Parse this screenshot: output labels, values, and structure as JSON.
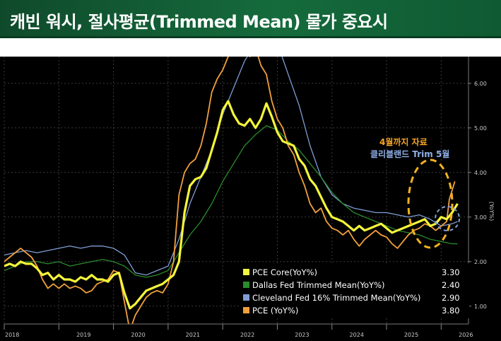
{
  "title": "캐빈 워시, 절사평균(Trimmed Mean) 물가 중요시",
  "annotations": {
    "pce_note": "4월까지 자료",
    "cleveland_note": "클리블랜드 Trim 5월"
  },
  "colors": {
    "pce_core": "#f5f53a",
    "dallas": "#2a8c2a",
    "cleveland": "#7f9ed6",
    "pce": "#f2a03c",
    "title_bg": "#156b3c"
  },
  "chart_data": {
    "type": "line",
    "title": "",
    "xlabel": "",
    "ylabel": "(YoY%)",
    "xlim": [
      2018.0,
      2026.5
    ],
    "ylim": [
      0.6,
      6.6
    ],
    "x_ticks": [
      "2018",
      "2019",
      "2020",
      "2021",
      "2022",
      "2023",
      "2024",
      "2025",
      "2026"
    ],
    "y_ticks": [
      "1.00",
      "2.00",
      "3.00",
      "4.00",
      "5.00",
      "6.00"
    ],
    "legend_position": "bottom-right",
    "series": [
      {
        "name": "PCE Core(YoY%)",
        "last_value": "3.30",
        "color": "#f5f53a",
        "points": [
          [
            2018.0,
            1.9
          ],
          [
            2018.1,
            1.95
          ],
          [
            2018.2,
            1.9
          ],
          [
            2018.3,
            2.0
          ],
          [
            2018.4,
            1.95
          ],
          [
            2018.5,
            1.95
          ],
          [
            2018.6,
            1.85
          ],
          [
            2018.7,
            1.7
          ],
          [
            2018.8,
            1.75
          ],
          [
            2018.9,
            1.6
          ],
          [
            2019.0,
            1.7
          ],
          [
            2019.1,
            1.6
          ],
          [
            2019.2,
            1.6
          ],
          [
            2019.3,
            1.55
          ],
          [
            2019.4,
            1.65
          ],
          [
            2019.5,
            1.6
          ],
          [
            2019.6,
            1.7
          ],
          [
            2019.7,
            1.6
          ],
          [
            2019.8,
            1.6
          ],
          [
            2019.9,
            1.55
          ],
          [
            2020.0,
            1.7
          ],
          [
            2020.1,
            1.75
          ],
          [
            2020.2,
            1.3
          ],
          [
            2020.3,
            0.95
          ],
          [
            2020.4,
            1.05
          ],
          [
            2020.5,
            1.2
          ],
          [
            2020.6,
            1.35
          ],
          [
            2020.7,
            1.4
          ],
          [
            2020.8,
            1.45
          ],
          [
            2020.9,
            1.5
          ],
          [
            2021.0,
            1.6
          ],
          [
            2021.1,
            1.7
          ],
          [
            2021.2,
            2.0
          ],
          [
            2021.3,
            3.1
          ],
          [
            2021.4,
            3.7
          ],
          [
            2021.5,
            3.85
          ],
          [
            2021.6,
            3.9
          ],
          [
            2021.7,
            4.1
          ],
          [
            2021.8,
            4.5
          ],
          [
            2021.9,
            4.9
          ],
          [
            2022.0,
            5.4
          ],
          [
            2022.1,
            5.6
          ],
          [
            2022.2,
            5.3
          ],
          [
            2022.3,
            5.1
          ],
          [
            2022.4,
            5.05
          ],
          [
            2022.5,
            5.2
          ],
          [
            2022.6,
            5.0
          ],
          [
            2022.7,
            5.2
          ],
          [
            2022.8,
            5.55
          ],
          [
            2022.9,
            5.25
          ],
          [
            2023.0,
            4.9
          ],
          [
            2023.1,
            4.7
          ],
          [
            2023.2,
            4.65
          ],
          [
            2023.3,
            4.6
          ],
          [
            2023.4,
            4.3
          ],
          [
            2023.5,
            4.15
          ],
          [
            2023.6,
            3.85
          ],
          [
            2023.7,
            3.7
          ],
          [
            2023.8,
            3.45
          ],
          [
            2023.9,
            3.2
          ],
          [
            2024.0,
            3.0
          ],
          [
            2024.1,
            2.95
          ],
          [
            2024.2,
            2.9
          ],
          [
            2024.3,
            2.8
          ],
          [
            2024.4,
            2.7
          ],
          [
            2024.5,
            2.8
          ],
          [
            2024.6,
            2.7
          ],
          [
            2024.7,
            2.75
          ],
          [
            2024.8,
            2.8
          ],
          [
            2024.9,
            2.85
          ],
          [
            2025.0,
            2.75
          ],
          [
            2025.1,
            2.65
          ],
          [
            2025.2,
            2.7
          ],
          [
            2025.3,
            2.75
          ],
          [
            2025.4,
            2.8
          ],
          [
            2025.5,
            2.85
          ],
          [
            2025.6,
            2.9
          ],
          [
            2025.7,
            2.95
          ],
          [
            2025.8,
            2.8
          ],
          [
            2025.9,
            2.85
          ],
          [
            2026.0,
            3.0
          ],
          [
            2026.1,
            2.95
          ],
          [
            2026.2,
            3.1
          ],
          [
            2026.3,
            3.3
          ]
        ]
      },
      {
        "name": "Dallas Fed Trimmed Mean(YoY%)",
        "last_value": "2.40",
        "color": "#2a8c2a",
        "points": [
          [
            2018.0,
            1.8
          ],
          [
            2018.2,
            1.9
          ],
          [
            2018.4,
            2.0
          ],
          [
            2018.6,
            2.0
          ],
          [
            2018.8,
            1.95
          ],
          [
            2019.0,
            2.0
          ],
          [
            2019.2,
            1.9
          ],
          [
            2019.4,
            1.95
          ],
          [
            2019.6,
            2.0
          ],
          [
            2019.8,
            2.05
          ],
          [
            2020.0,
            2.0
          ],
          [
            2020.2,
            1.9
          ],
          [
            2020.4,
            1.7
          ],
          [
            2020.6,
            1.65
          ],
          [
            2020.8,
            1.7
          ],
          [
            2021.0,
            1.8
          ],
          [
            2021.2,
            2.2
          ],
          [
            2021.4,
            2.6
          ],
          [
            2021.6,
            2.9
          ],
          [
            2021.8,
            3.3
          ],
          [
            2022.0,
            3.8
          ],
          [
            2022.2,
            4.2
          ],
          [
            2022.4,
            4.6
          ],
          [
            2022.6,
            4.85
          ],
          [
            2022.8,
            5.05
          ],
          [
            2023.0,
            4.95
          ],
          [
            2023.2,
            4.7
          ],
          [
            2023.4,
            4.5
          ],
          [
            2023.6,
            4.2
          ],
          [
            2023.8,
            3.9
          ],
          [
            2024.0,
            3.55
          ],
          [
            2024.2,
            3.3
          ],
          [
            2024.4,
            3.1
          ],
          [
            2024.6,
            3.0
          ],
          [
            2024.8,
            2.9
          ],
          [
            2025.0,
            2.8
          ],
          [
            2025.2,
            2.7
          ],
          [
            2025.4,
            2.65
          ],
          [
            2025.6,
            2.6
          ],
          [
            2025.8,
            2.5
          ],
          [
            2026.0,
            2.45
          ],
          [
            2026.2,
            2.4
          ],
          [
            2026.3,
            2.4
          ]
        ]
      },
      {
        "name": "Cleveland Fed 16% Trimmed Mean(YoY%)",
        "last_value": "2.90",
        "color": "#7f9ed6",
        "points": [
          [
            2018.0,
            2.15
          ],
          [
            2018.2,
            2.2
          ],
          [
            2018.4,
            2.25
          ],
          [
            2018.6,
            2.2
          ],
          [
            2018.8,
            2.25
          ],
          [
            2019.0,
            2.3
          ],
          [
            2019.2,
            2.35
          ],
          [
            2019.4,
            2.3
          ],
          [
            2019.6,
            2.35
          ],
          [
            2019.8,
            2.35
          ],
          [
            2020.0,
            2.3
          ],
          [
            2020.2,
            2.15
          ],
          [
            2020.4,
            1.75
          ],
          [
            2020.6,
            1.7
          ],
          [
            2020.8,
            1.8
          ],
          [
            2021.0,
            1.9
          ],
          [
            2021.2,
            2.5
          ],
          [
            2021.4,
            3.3
          ],
          [
            2021.6,
            3.9
          ],
          [
            2021.8,
            4.5
          ],
          [
            2022.0,
            5.3
          ],
          [
            2022.2,
            5.9
          ],
          [
            2022.4,
            6.5
          ],
          [
            2022.6,
            6.9
          ],
          [
            2022.8,
            7.2
          ],
          [
            2023.0,
            6.9
          ],
          [
            2023.2,
            6.2
          ],
          [
            2023.4,
            5.5
          ],
          [
            2023.6,
            4.6
          ],
          [
            2023.8,
            3.9
          ],
          [
            2024.0,
            3.5
          ],
          [
            2024.2,
            3.3
          ],
          [
            2024.4,
            3.2
          ],
          [
            2024.6,
            3.15
          ],
          [
            2024.8,
            3.1
          ],
          [
            2025.0,
            3.1
          ],
          [
            2025.2,
            3.05
          ],
          [
            2025.4,
            3.0
          ],
          [
            2025.6,
            3.05
          ],
          [
            2025.8,
            2.95
          ],
          [
            2026.0,
            2.8
          ],
          [
            2026.2,
            2.85
          ],
          [
            2026.3,
            2.9
          ]
        ]
      },
      {
        "name": "PCE (YoY%)",
        "last_value": "3.80",
        "color": "#f2a03c",
        "points": [
          [
            2018.0,
            2.0
          ],
          [
            2018.1,
            2.1
          ],
          [
            2018.2,
            2.2
          ],
          [
            2018.3,
            2.3
          ],
          [
            2018.4,
            2.2
          ],
          [
            2018.5,
            2.1
          ],
          [
            2018.6,
            1.9
          ],
          [
            2018.7,
            1.6
          ],
          [
            2018.8,
            1.4
          ],
          [
            2018.9,
            1.5
          ],
          [
            2019.0,
            1.4
          ],
          [
            2019.1,
            1.5
          ],
          [
            2019.2,
            1.4
          ],
          [
            2019.3,
            1.45
          ],
          [
            2019.4,
            1.4
          ],
          [
            2019.5,
            1.3
          ],
          [
            2019.6,
            1.35
          ],
          [
            2019.7,
            1.5
          ],
          [
            2019.8,
            1.55
          ],
          [
            2019.9,
            1.6
          ],
          [
            2020.0,
            1.8
          ],
          [
            2020.1,
            1.75
          ],
          [
            2020.2,
            1.1
          ],
          [
            2020.3,
            0.45
          ],
          [
            2020.4,
            0.8
          ],
          [
            2020.5,
            1.0
          ],
          [
            2020.6,
            1.2
          ],
          [
            2020.7,
            1.3
          ],
          [
            2020.8,
            1.35
          ],
          [
            2020.9,
            1.3
          ],
          [
            2021.0,
            1.5
          ],
          [
            2021.1,
            2.0
          ],
          [
            2021.2,
            3.5
          ],
          [
            2021.3,
            4.0
          ],
          [
            2021.4,
            4.2
          ],
          [
            2021.5,
            4.3
          ],
          [
            2021.6,
            4.6
          ],
          [
            2021.7,
            5.1
          ],
          [
            2021.8,
            5.8
          ],
          [
            2021.9,
            6.1
          ],
          [
            2022.0,
            6.3
          ],
          [
            2022.1,
            6.6
          ],
          [
            2022.2,
            6.7
          ],
          [
            2022.3,
            6.9
          ],
          [
            2022.4,
            6.7
          ],
          [
            2022.5,
            6.6
          ],
          [
            2022.6,
            6.8
          ],
          [
            2022.7,
            6.4
          ],
          [
            2022.8,
            6.2
          ],
          [
            2022.9,
            5.6
          ],
          [
            2023.0,
            5.2
          ],
          [
            2023.1,
            5.0
          ],
          [
            2023.2,
            4.6
          ],
          [
            2023.3,
            4.4
          ],
          [
            2023.4,
            4.0
          ],
          [
            2023.5,
            3.7
          ],
          [
            2023.6,
            3.3
          ],
          [
            2023.7,
            3.1
          ],
          [
            2023.8,
            3.2
          ],
          [
            2023.9,
            2.9
          ],
          [
            2024.0,
            2.75
          ],
          [
            2024.1,
            2.7
          ],
          [
            2024.2,
            2.6
          ],
          [
            2024.3,
            2.7
          ],
          [
            2024.4,
            2.5
          ],
          [
            2024.5,
            2.35
          ],
          [
            2024.6,
            2.5
          ],
          [
            2024.7,
            2.6
          ],
          [
            2024.8,
            2.7
          ],
          [
            2024.9,
            2.6
          ],
          [
            2025.0,
            2.55
          ],
          [
            2025.1,
            2.4
          ],
          [
            2025.2,
            2.3
          ],
          [
            2025.3,
            2.45
          ],
          [
            2025.4,
            2.6
          ],
          [
            2025.5,
            2.7
          ],
          [
            2025.6,
            2.75
          ],
          [
            2025.7,
            2.85
          ],
          [
            2025.8,
            2.8
          ],
          [
            2025.9,
            2.7
          ],
          [
            2026.0,
            2.8
          ],
          [
            2026.1,
            2.9
          ],
          [
            2026.15,
            3.4
          ],
          [
            2026.25,
            3.8
          ]
        ]
      }
    ]
  }
}
